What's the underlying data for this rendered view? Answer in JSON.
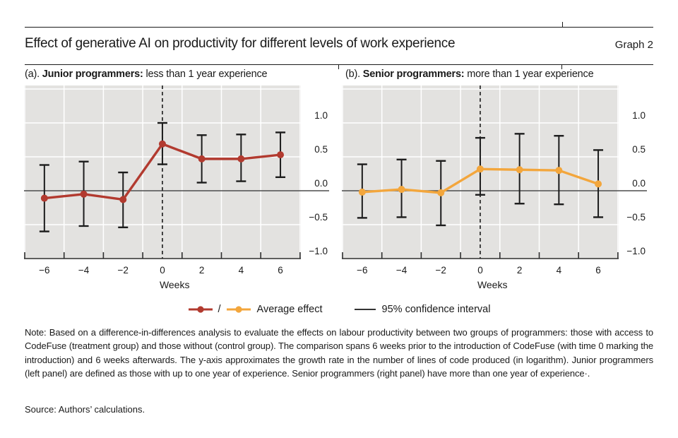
{
  "header": {
    "title": "Effect of generative AI on productivity for different levels of work experience",
    "graph_label": "Graph 2"
  },
  "panels": [
    {
      "prefix": "(a). ",
      "name": "Junior programmers:",
      "desc": " less than 1 year experience"
    },
    {
      "prefix": "(b). ",
      "name": "Senior programmers:",
      "desc": " more than 1 year experience"
    }
  ],
  "legend": {
    "separator": "/",
    "average_label": "Average effect",
    "ci_label": "95% confidence interval"
  },
  "note": {
    "text": "Note: Based on a difference-in-differences analysis to evaluate the effects on labour productivity between two groups of programmers: those with access to CodeFuse (treatment group) and those without (control group). The comparison spans 6 weeks prior to the introduction of CodeFuse (with time 0 marking the introduction) and 6 weeks afterwards. The y-axis approximates the growth rate in the number of lines of code produced (in logarithm). Junior programmers (left panel) are defined as those with up to one year of experience. Senior programmers (right panel) have more than one year of experience·."
  },
  "source": {
    "text": "Source: Authors’ calculations."
  },
  "colors": {
    "junior_series": "#b23a2f",
    "senior_series": "#f3a63c",
    "plot_bg": "#e3e2e0",
    "grid": "#ffffff",
    "zero_line": "#4d4d4d",
    "axis": "#2e2e2e",
    "error_bar": "#1c1c1c",
    "event_line": "#1a1a1a",
    "text": "#1a1a1a"
  },
  "chart_data": [
    {
      "type": "line",
      "title": "(a). Junior programmers: less than 1 year experience",
      "x": [
        -6,
        -4,
        -2,
        0,
        2,
        4,
        6
      ],
      "y": [
        -0.11,
        -0.05,
        -0.13,
        0.69,
        0.47,
        0.47,
        0.53
      ],
      "ci_low": [
        -0.6,
        -0.52,
        -0.54,
        0.39,
        0.12,
        0.14,
        0.2
      ],
      "ci_high": [
        0.38,
        0.43,
        0.27,
        1.0,
        0.82,
        0.83,
        0.86
      ],
      "series_name": "Average effect (junior)",
      "series_color": "#b23a2f",
      "xlabel": "Weeks",
      "ylabel": "",
      "xlim": [
        -7,
        7.1
      ],
      "ylim": [
        -1.0,
        1.55
      ],
      "event_line_x": 0,
      "grid": true,
      "grid_y_values": [
        1.5,
        1.0,
        0.5,
        -0.5
      ],
      "grid_x_values": [
        -7,
        -5,
        -3,
        -1,
        1,
        3,
        5,
        7
      ],
      "y_ticks": [
        {
          "label": "1.0",
          "value": 1.0
        },
        {
          "label": "0.5",
          "value": 0.5
        },
        {
          "label": "0.0",
          "value": 0.0
        },
        {
          "label": "−0.5",
          "value": -0.5
        },
        {
          "label": "−1.0",
          "value": -1.0
        }
      ],
      "x_ticks": [
        {
          "label": "−6",
          "value": -6
        },
        {
          "label": "−4",
          "value": -4
        },
        {
          "label": "−2",
          "value": -2
        },
        {
          "label": "0",
          "value": 0
        },
        {
          "label": "2",
          "value": 2
        },
        {
          "label": "4",
          "value": 4
        },
        {
          "label": "6",
          "value": 6
        }
      ]
    },
    {
      "type": "line",
      "title": "(b). Senior programmers: more than 1 year experience",
      "x": [
        -6,
        -4,
        -2,
        0,
        2,
        4,
        6
      ],
      "y": [
        -0.02,
        0.02,
        -0.03,
        0.32,
        0.31,
        0.3,
        0.1
      ],
      "ci_low": [
        -0.4,
        -0.39,
        -0.51,
        -0.06,
        -0.19,
        -0.2,
        -0.39
      ],
      "ci_high": [
        0.39,
        0.46,
        0.44,
        0.78,
        0.84,
        0.81,
        0.6
      ],
      "series_name": "Average effect (senior)",
      "series_color": "#f3a63c",
      "xlabel": "Weeks",
      "ylabel": "",
      "xlim": [
        -7,
        7.1
      ],
      "ylim": [
        -1.0,
        1.55
      ],
      "event_line_x": 0,
      "grid": true,
      "grid_y_values": [
        1.5,
        1.0,
        0.5,
        -0.5
      ],
      "grid_x_values": [
        -7,
        -5,
        -3,
        -1,
        1,
        3,
        5,
        7
      ],
      "y_ticks": [
        {
          "label": "1.0",
          "value": 1.0
        },
        {
          "label": "0.5",
          "value": 0.5
        },
        {
          "label": "0.0",
          "value": 0.0
        },
        {
          "label": "−0.5",
          "value": -0.5
        },
        {
          "label": "−1.0",
          "value": -1.0
        }
      ],
      "x_ticks": [
        {
          "label": "−6",
          "value": -6
        },
        {
          "label": "−4",
          "value": -4
        },
        {
          "label": "−2",
          "value": -2
        },
        {
          "label": "0",
          "value": 0
        },
        {
          "label": "2",
          "value": 2
        },
        {
          "label": "4",
          "value": 4
        },
        {
          "label": "6",
          "value": 6
        }
      ]
    }
  ]
}
